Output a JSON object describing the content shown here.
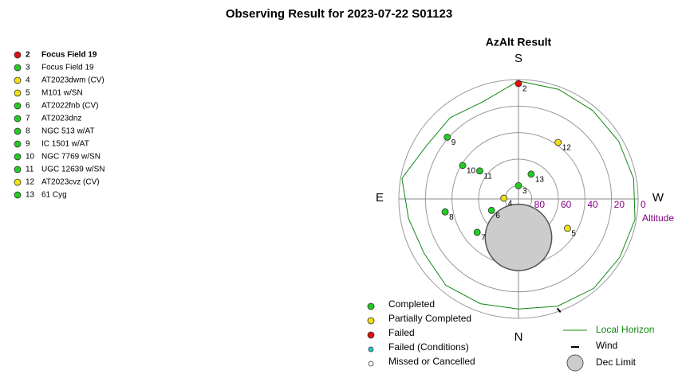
{
  "chart_data": {
    "type": "polar",
    "title": "Observing Result for 2023-07-22 S01123",
    "subtitle": "AzAlt Result",
    "directions": {
      "S": "S",
      "E": "E",
      "W": "W",
      "N": "N"
    },
    "r_axis_label": "Altitude",
    "rlim": [
      90,
      0
    ],
    "rticks": [
      80,
      60,
      40,
      20,
      0
    ],
    "targets": [
      {
        "id": 2,
        "name": "Focus Field 19",
        "color": "#e01010",
        "az": 180,
        "alt": 3
      },
      {
        "id": 3,
        "name": "Focus Field 19",
        "color": "#22cc22",
        "az": 180,
        "alt": 80
      },
      {
        "id": 4,
        "name": "AT2023dwm (CV)",
        "color": "#f0e010",
        "az": 93,
        "alt": 79
      },
      {
        "id": 5,
        "name": "M101 w/SN",
        "color": "#f0e010",
        "az": 301,
        "alt": 47
      },
      {
        "id": 6,
        "name": "AT2022fnb (CV)",
        "color": "#22cc22",
        "az": 67,
        "alt": 68
      },
      {
        "id": 7,
        "name": "AT2023dnz",
        "color": "#22cc22",
        "az": 51,
        "alt": 50
      },
      {
        "id": 8,
        "name": "NGC 513 w/AT",
        "color": "#22cc22",
        "az": 80,
        "alt": 34
      },
      {
        "id": 9,
        "name": "IC 1501 w/AT",
        "color": "#22cc22",
        "az": 131,
        "alt": 19
      },
      {
        "id": 10,
        "name": "NGC 7769 w/SN",
        "color": "#22cc22",
        "az": 121,
        "alt": 41
      },
      {
        "id": 11,
        "name": "UGC 12639 w/SN",
        "color": "#22cc22",
        "az": 126,
        "alt": 54
      },
      {
        "id": 12,
        "name": "AT2023cvz (CV)",
        "color": "#f0e010",
        "az": 215,
        "alt": 38
      },
      {
        "id": 13,
        "name": "61 Cyg",
        "color": "#22cc22",
        "az": 207,
        "alt": 69
      }
    ],
    "horizon": {
      "name": "Local Horizon",
      "color": "#118811",
      "az": [
        0,
        20,
        40,
        60,
        80,
        100,
        120,
        140,
        160,
        180,
        200,
        220,
        240,
        260,
        280,
        300,
        320,
        340,
        360
      ],
      "alt": [
        7,
        6,
        5,
        8,
        6,
        1,
        10,
        10,
        12,
        1,
        2,
        3,
        3,
        2,
        1,
        2,
        2,
        4,
        7
      ]
    },
    "wind": {
      "name": "Wind",
      "az": 340,
      "alt": 1
    },
    "dec_limit": {
      "name": "Dec Limit",
      "color": "#cccccc",
      "az": 0,
      "alt": 61,
      "radius": 25
    },
    "legend": [
      {
        "label": "Completed",
        "color": "#22cc22"
      },
      {
        "label": "Partially Completed",
        "color": "#f0e010"
      },
      {
        "label": "Failed",
        "color": "#e01010"
      },
      {
        "label": "Failed (Conditions)",
        "color": "#20c8d8"
      },
      {
        "label": "Missed or Cancelled",
        "color": "#ffffff"
      }
    ]
  }
}
